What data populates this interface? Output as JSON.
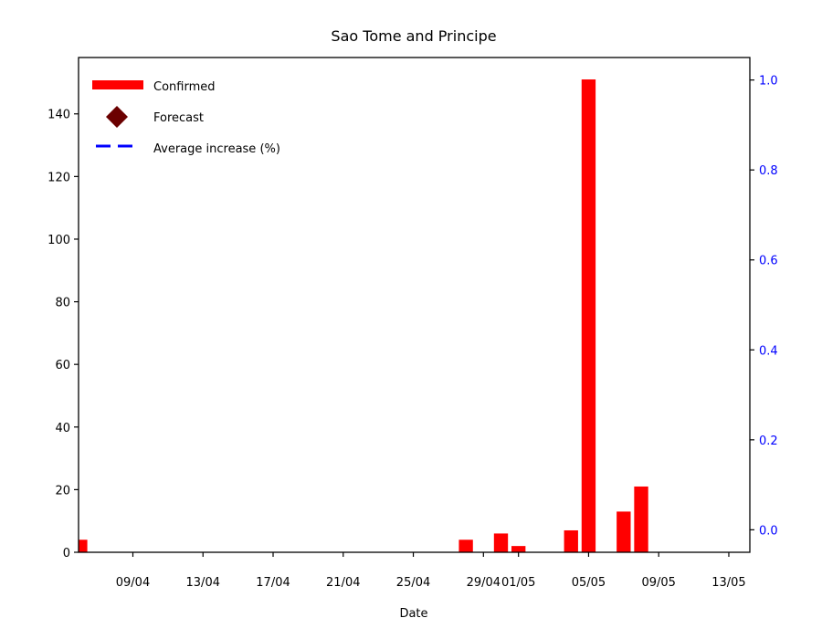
{
  "chart_data": {
    "type": "bar",
    "title": "Sao Tome and Principe",
    "xlabel": "Date",
    "ylabel": "",
    "ylim": [
      0,
      158
    ],
    "y_ticks": [
      0,
      20,
      40,
      60,
      80,
      100,
      120,
      140
    ],
    "y2lim": [
      -0.05,
      1.05
    ],
    "y2_ticks": [
      "0.0",
      "0.2",
      "0.4",
      "0.6",
      "0.8",
      "1.0"
    ],
    "x_tick_labels": [
      "09/04",
      "13/04",
      "17/04",
      "21/04",
      "25/04",
      "29/04",
      "01/05",
      "05/05",
      "09/05",
      "13/05"
    ],
    "x_tick_days": [
      9,
      13,
      17,
      21,
      25,
      29,
      31,
      35,
      39,
      43
    ],
    "x_range_days": [
      5.9,
      44.2
    ],
    "series": [
      {
        "name": "Confirmed",
        "color": "#ff0000",
        "bar_days": [
          6,
          28,
          30,
          31,
          34,
          35,
          37,
          38
        ],
        "values": [
          4,
          4,
          6,
          2,
          7,
          151,
          13,
          21
        ]
      }
    ],
    "legend": {
      "placement": "top-left",
      "entries": [
        {
          "label": "Confirmed",
          "marker": "bar",
          "color": "#ff0000"
        },
        {
          "label": "Forecast",
          "marker": "diamond",
          "color": "#6b0000"
        },
        {
          "label": "Average increase (%)",
          "marker": "dashed-line",
          "color": "#0000ff"
        }
      ]
    },
    "right_axis_color": "#0000ff",
    "grid": false
  }
}
